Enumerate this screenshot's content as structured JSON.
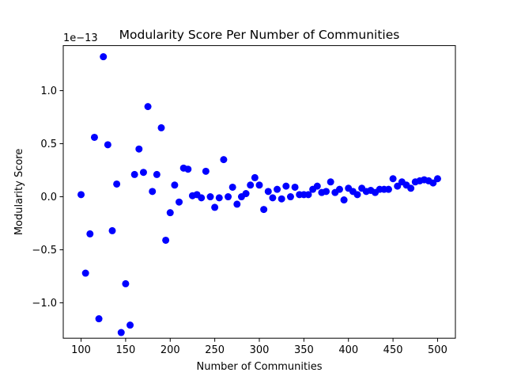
{
  "chart_data": {
    "type": "scatter",
    "title": "Modularity Score Per Number of Communities",
    "xlabel": "Number of Communities",
    "ylabel": "Modularity Score",
    "y_offset_label": "1e−13",
    "y_scale": 1e-13,
    "xlim": [
      80,
      520
    ],
    "ylim": [
      -1.3333,
      1.4248
    ],
    "x_ticks": [
      100,
      150,
      200,
      250,
      300,
      350,
      400,
      450,
      500
    ],
    "y_ticks": [
      -1.0,
      -0.5,
      0.0,
      0.5,
      1.0
    ],
    "y_tick_labels": [
      "−1.0",
      "−0.5",
      "0.0",
      "0.5",
      "1.0"
    ],
    "grid": false,
    "marker_color": "#0000ff",
    "series": [
      {
        "x": [
          100,
          105,
          110,
          115,
          120,
          125,
          130,
          135,
          140,
          145,
          150,
          155,
          160,
          165,
          170,
          175,
          180,
          185,
          190,
          195,
          200,
          205,
          210,
          215,
          220,
          225,
          230,
          235,
          240,
          245,
          250,
          255,
          260,
          265,
          270,
          275,
          280,
          285,
          290,
          295,
          300,
          305,
          310,
          315,
          320,
          325,
          330,
          335,
          340,
          345,
          350,
          355,
          360,
          365,
          370,
          375,
          380,
          385,
          390,
          395,
          400,
          405,
          410,
          415,
          420,
          425,
          430,
          435,
          440,
          445,
          450,
          455,
          460,
          465,
          470,
          475,
          480,
          485,
          490,
          495,
          500
        ],
        "y": [
          0.02,
          -0.72,
          -0.35,
          0.56,
          -1.15,
          1.32,
          0.49,
          -0.32,
          0.12,
          -1.28,
          -0.82,
          -1.21,
          0.21,
          0.45,
          0.23,
          0.85,
          0.05,
          0.21,
          0.65,
          -0.41,
          -0.15,
          0.11,
          -0.05,
          0.27,
          0.26,
          0.01,
          0.02,
          -0.01,
          0.24,
          0.0,
          -0.1,
          -0.01,
          0.35,
          0.0,
          0.09,
          -0.07,
          0.0,
          0.03,
          0.11,
          0.18,
          0.11,
          -0.12,
          0.05,
          -0.01,
          0.07,
          -0.02,
          0.1,
          0.0,
          0.09,
          0.02,
          0.02,
          0.02,
          0.07,
          0.1,
          0.04,
          0.05,
          0.14,
          0.04,
          0.07,
          -0.03,
          0.08,
          0.05,
          0.02,
          0.08,
          0.05,
          0.06,
          0.04,
          0.07,
          0.07,
          0.07,
          0.17,
          0.1,
          0.14,
          0.11,
          0.08,
          0.14,
          0.15,
          0.16,
          0.15,
          0.13,
          0.17
        ]
      }
    ]
  }
}
